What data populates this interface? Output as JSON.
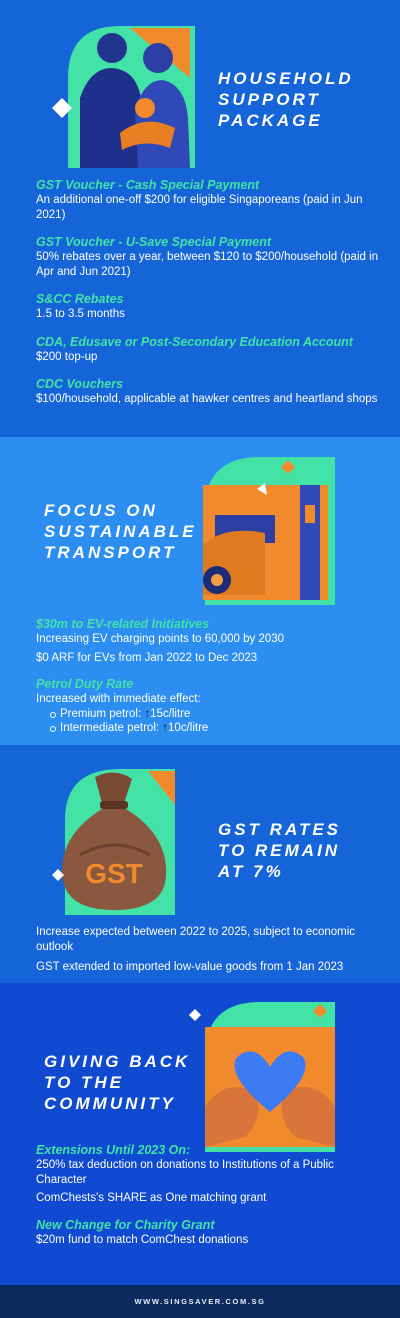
{
  "household": {
    "heading": [
      "HOUSEHOLD",
      "SUPPORT",
      "PACKAGE"
    ],
    "items": [
      {
        "title": "GST Voucher - Cash Special Payment",
        "text": "An additional one-off $200 for eligible Singaporeans (paid in Jun 2021)"
      },
      {
        "title": "GST Voucher - U-Save Special Payment",
        "text": "50% rebates over a year, between $120 to $200/household (paid in Apr and Jun 2021)"
      },
      {
        "title": "S&CC Rebates",
        "text": "1.5 to 3.5 months"
      },
      {
        "title": "CDA, Edusave or Post-Secondary Education Account",
        "text": "$200 top-up"
      },
      {
        "title": "CDC Vouchers",
        "text": "$100/household, applicable at hawker centres and heartland shops"
      }
    ]
  },
  "transport": {
    "heading": [
      "FOCUS ON",
      "SUSTAINABLE",
      "TRANSPORT"
    ],
    "ev_title": "$30m to EV-related Initiatives",
    "ev_lines": [
      "Increasing EV charging points to 60,000 by 2030",
      "$0 ARF for EVs from Jan 2022 to Dec 2023"
    ],
    "petrol_title": "Petrol Duty Rate",
    "petrol_intro": "Increased with immediate effect:",
    "petrol_items": [
      {
        "label": "Premium petrol: ",
        "arrow": "↑",
        "value": "15c/litre"
      },
      {
        "label": "Intermediate petrol: ",
        "arrow": "↑",
        "value": "10c/litre"
      }
    ]
  },
  "gst": {
    "heading": [
      "GST RATES",
      "TO REMAIN",
      "AT 7%"
    ],
    "bag_label": "GST",
    "lines": [
      "Increase expected between 2022 to 2025, subject to economic outlook",
      "GST extended to imported low-value goods from 1 Jan 2023"
    ]
  },
  "community": {
    "heading": [
      "GIVING BACK",
      "TO THE",
      "COMMUNITY"
    ],
    "ext_title": "Extensions Until 2023 On:",
    "ext_lines": [
      "250% tax deduction on donations to Institutions of a Public Character",
      "ComChests's SHARE as One matching grant"
    ],
    "grant_title": "New Change for Charity Grant",
    "grant_text": "$20m fund to match ComChest donations"
  },
  "footer": {
    "text": "WWW.SINGSAVER.COM.SG"
  },
  "colors": {
    "accent_green": "#43e3a7",
    "accent_orange": "#f08a2c",
    "bg_blue": "#1565d8"
  }
}
